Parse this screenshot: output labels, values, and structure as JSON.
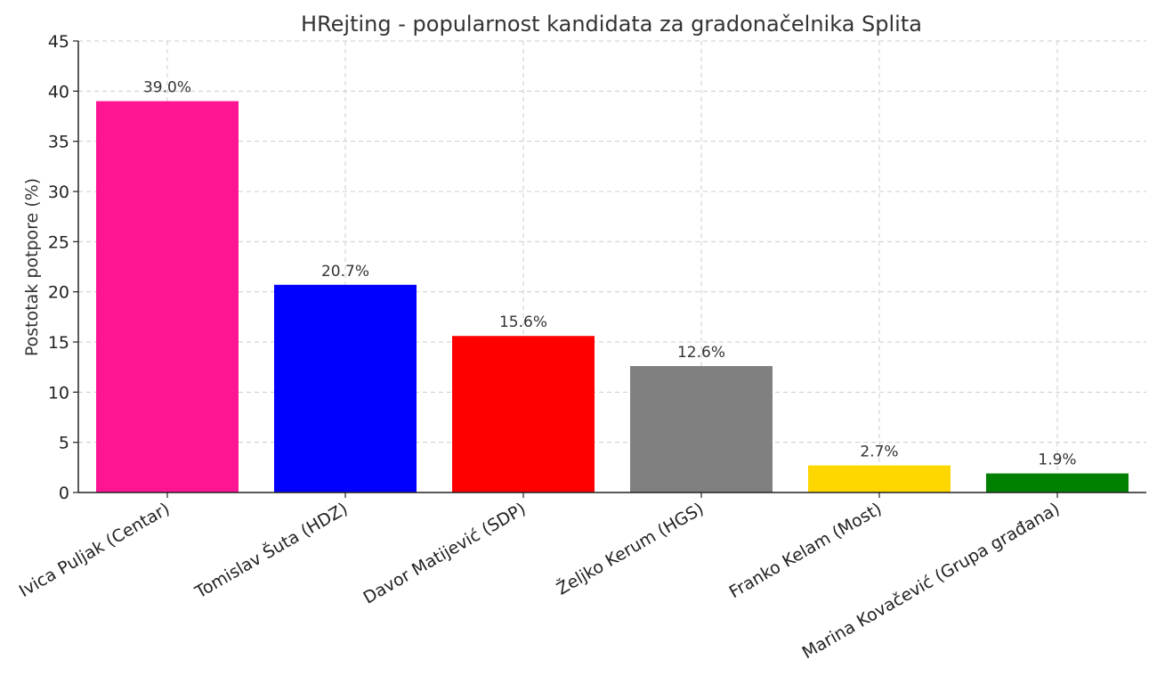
{
  "chart_data": {
    "type": "bar",
    "title": "HRejting - popularnost kandidata za gradonačelnika Splita",
    "xlabel": "",
    "ylabel": "Postotak potpore (%)",
    "ylim": [
      0,
      45
    ],
    "yticks": [
      0,
      5,
      10,
      15,
      20,
      25,
      30,
      35,
      40,
      45
    ],
    "grid": true,
    "categories": [
      "Ivica Puljak (Centar)",
      "Tomislav Šuta (HDZ)",
      "Davor Matijević (SDP)",
      "Željko Kerum (HGS)",
      "Franko Kelam (Most)",
      "Marina Kovačević (Grupa građana)"
    ],
    "values": [
      39.0,
      20.7,
      15.6,
      12.6,
      2.7,
      1.9
    ],
    "data_labels": [
      "39.0%",
      "20.7%",
      "15.6%",
      "12.6%",
      "2.7%",
      "1.9%"
    ],
    "colors": [
      "#ff1493",
      "#0000ff",
      "#ff0000",
      "#808080",
      "#ffd700",
      "#008000"
    ]
  }
}
